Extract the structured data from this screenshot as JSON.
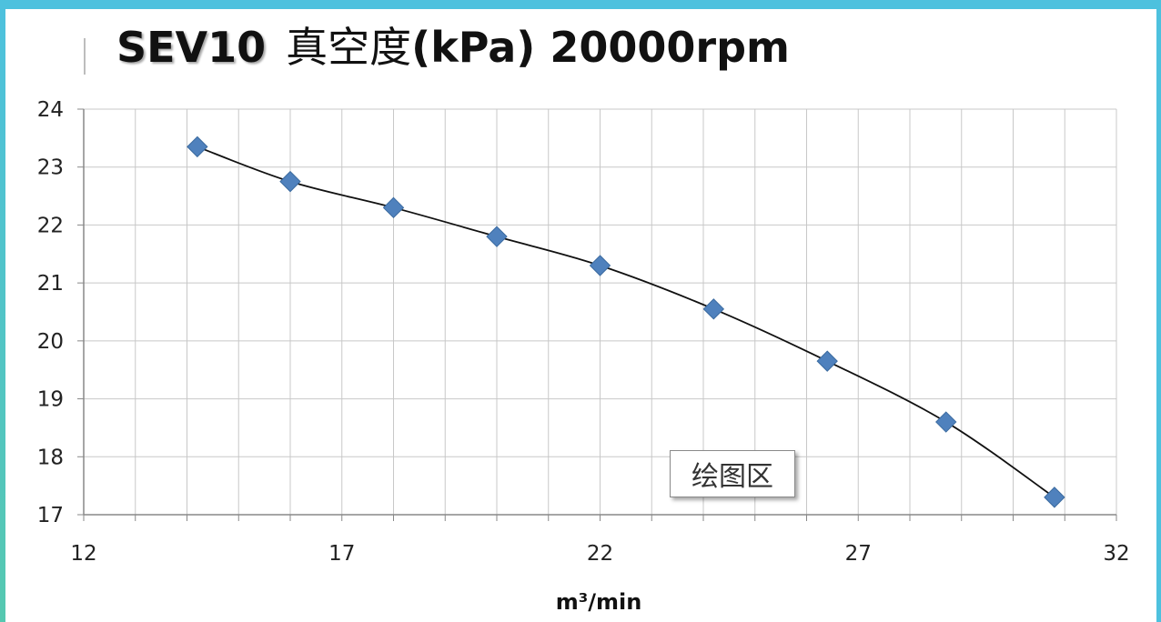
{
  "chart_data": {
    "type": "scatter",
    "title_parts": [
      "SEV10",
      "真空度",
      "(kPa) 20000rpm"
    ],
    "xlabel": "m³/min",
    "ylabel": "",
    "xlim": [
      12,
      32
    ],
    "ylim": [
      17,
      24
    ],
    "x_ticks": [
      "12",
      "17",
      "22",
      "27",
      "32"
    ],
    "y_ticks": [
      "17",
      "18",
      "19",
      "20",
      "21",
      "22",
      "23",
      "24"
    ],
    "grid": true,
    "marker": "diamond",
    "marker_color": "#4f81bd",
    "trend_line": "smooth",
    "trend_color": "#111111",
    "series": [
      {
        "x": [
          14.2,
          16.0,
          18.0,
          20.0,
          22.0,
          24.2,
          26.4,
          28.7,
          30.8
        ],
        "y": [
          23.35,
          22.75,
          22.3,
          21.8,
          21.3,
          20.55,
          19.65,
          18.6,
          17.3
        ]
      }
    ],
    "tooltip_label": "绘图区"
  }
}
